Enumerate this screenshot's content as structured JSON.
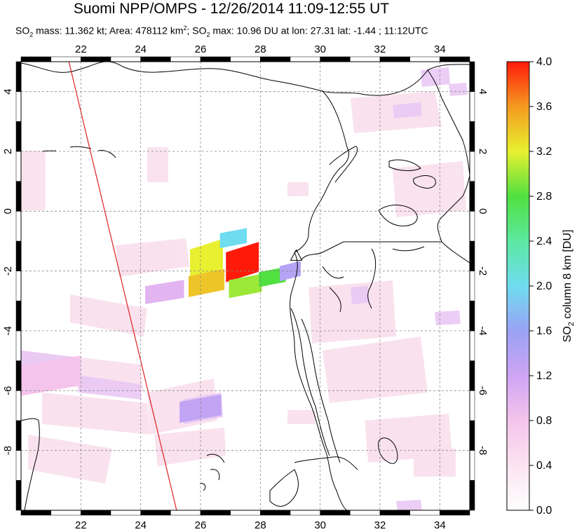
{
  "header": {
    "title": "Suomi NPP/OMPS - 12/26/2014 11:09-12:55 UT",
    "subtitle": {
      "mass_prefix": "SO",
      "mass_sub": "2",
      "mass_text": " mass: 11.362 kt; Area: 478112 km",
      "area_sup": "2",
      "max_prefix": "; SO",
      "max_sub": "2",
      "max_text": " max: 10.96 DU at lon: 27.31 lat: -1.44 ; 11:12UTC"
    }
  },
  "chart_data": {
    "type": "heatmap",
    "title": "Suomi NPP/OMPS - 12/26/2014 11:09-12:55 UT",
    "x_ticks": [
      "22",
      "24",
      "26",
      "28",
      "30",
      "32",
      "34"
    ],
    "x_tick_values": [
      22,
      24,
      26,
      28,
      30,
      32,
      34
    ],
    "y_ticks": [
      "4",
      "2",
      "0",
      "-2",
      "-4",
      "-6",
      "-8"
    ],
    "y_tick_values": [
      4,
      2,
      0,
      -2,
      -4,
      -6,
      -8
    ],
    "xlim": [
      20,
      35
    ],
    "ylim": [
      -10,
      5
    ],
    "grid": true,
    "colorbar": {
      "label_prefix": "SO",
      "label_sub": "2",
      "label_suffix": " column 8 km [DU]",
      "ticks": [
        "4.0",
        "3.6",
        "3.2",
        "2.8",
        "2.4",
        "2.0",
        "1.6",
        "1.2",
        "0.8",
        "0.4",
        "0.0"
      ],
      "range": [
        0,
        4
      ]
    },
    "so2_pixels": [
      {
        "lon": 26.2,
        "lat": -1.6,
        "value": 3.2,
        "w": 1.1,
        "h": 1.0
      },
      {
        "lon": 27.4,
        "lat": -1.7,
        "value": 4.0,
        "w": 1.1,
        "h": 1.0
      },
      {
        "lon": 27.1,
        "lat": -0.9,
        "value": 2.0,
        "w": 0.9,
        "h": 0.5
      },
      {
        "lon": 26.2,
        "lat": -2.4,
        "value": 3.4,
        "w": 1.2,
        "h": 0.7
      },
      {
        "lon": 27.5,
        "lat": -2.5,
        "value": 3.0,
        "w": 1.1,
        "h": 0.6
      },
      {
        "lon": 28.4,
        "lat": -2.2,
        "value": 2.8,
        "w": 0.9,
        "h": 0.5
      },
      {
        "lon": 29.0,
        "lat": -2.0,
        "value": 1.4,
        "w": 0.7,
        "h": 0.5
      },
      {
        "lon": 24.8,
        "lat": -2.7,
        "value": 1.0,
        "w": 1.3,
        "h": 0.6
      },
      {
        "lon": 26.0,
        "lat": -6.6,
        "value": 1.3,
        "w": 1.4,
        "h": 0.7
      },
      {
        "lon": 21.0,
        "lat": -5.5,
        "value": 0.8,
        "w": 2.0,
        "h": 1.0
      }
    ],
    "volcano": {
      "lon": 29.2,
      "lat": -1.5
    },
    "orbit_edge": [
      {
        "lon": 21.6,
        "lat": 5.0
      },
      {
        "lon": 25.2,
        "lat": -10.0
      }
    ]
  }
}
